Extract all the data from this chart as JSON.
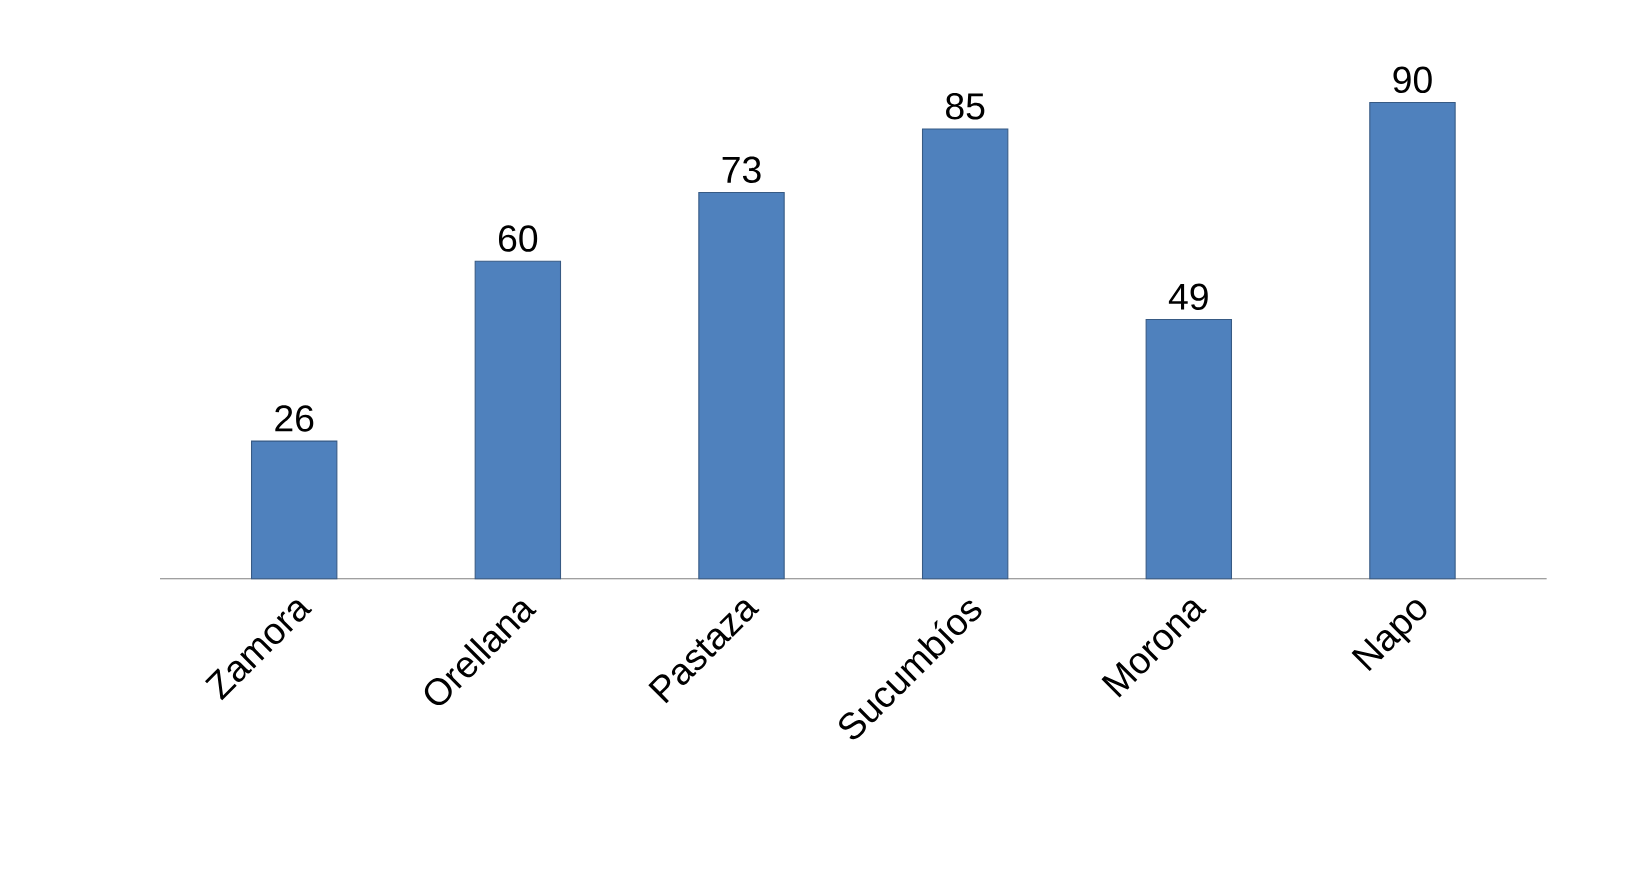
{
  "chart_data": {
    "type": "bar",
    "categories": [
      "Zamora",
      "Orellana",
      "Pastaza",
      "Sucumbíos",
      "Morona",
      "Napo"
    ],
    "values": [
      26,
      60,
      73,
      85,
      49,
      90
    ],
    "color": "#4f81bd",
    "data_labels": true
  }
}
